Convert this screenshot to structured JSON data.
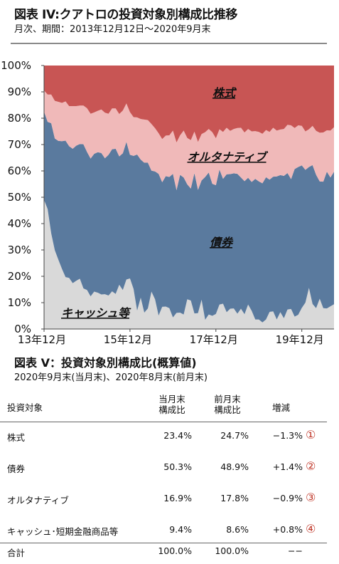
{
  "header": {
    "title": "図表 IV:クアトロの投資対象別構成比推移",
    "subtitle": "月次、期間：2013年12月12日～2020年9月末"
  },
  "chart_data": {
    "type": "area",
    "stacked": true,
    "title": "図表 IV:クアトロの投資対象別構成比推移",
    "subtitle": "月次、期間：2013年12月12日～2020年9月末",
    "y_tick_labels": [
      "0%",
      "10%",
      "20%",
      "30%",
      "40%",
      "50%",
      "60%",
      "70%",
      "80%",
      "90%",
      "100%"
    ],
    "x_tick_labels": [
      "13年12月",
      "15年12月",
      "17年12月",
      "19年12月"
    ],
    "ylim": [
      0,
      100
    ],
    "grid": false,
    "annotations": [
      "株式",
      "オルタナティブ",
      "債券",
      "キャッシュ等"
    ],
    "x": [
      "2013-12",
      "2014-01",
      "2014-02",
      "2014-03",
      "2014-04",
      "2014-05",
      "2014-06",
      "2014-07",
      "2014-08",
      "2014-09",
      "2014-10",
      "2014-11",
      "2014-12",
      "2015-01",
      "2015-02",
      "2015-03",
      "2015-04",
      "2015-05",
      "2015-06",
      "2015-07",
      "2015-08",
      "2015-09",
      "2015-10",
      "2015-11",
      "2015-12",
      "2016-01",
      "2016-02",
      "2016-03",
      "2016-04",
      "2016-05",
      "2016-06",
      "2016-07",
      "2016-08",
      "2016-09",
      "2016-10",
      "2016-11",
      "2016-12",
      "2017-01",
      "2017-02",
      "2017-03",
      "2017-04",
      "2017-05",
      "2017-06",
      "2017-07",
      "2017-08",
      "2017-09",
      "2017-10",
      "2017-11",
      "2017-12",
      "2018-01",
      "2018-02",
      "2018-03",
      "2018-04",
      "2018-05",
      "2018-06",
      "2018-07",
      "2018-08",
      "2018-09",
      "2018-10",
      "2018-11",
      "2018-12",
      "2019-01",
      "2019-02",
      "2019-03",
      "2019-04",
      "2019-05",
      "2019-06",
      "2019-07",
      "2019-08",
      "2019-09",
      "2019-10",
      "2019-11",
      "2019-12",
      "2020-01",
      "2020-02",
      "2020-03",
      "2020-04",
      "2020-05",
      "2020-06",
      "2020-07",
      "2020-08",
      "2020-09"
    ],
    "series": [
      {
        "name": "キャッシュ等",
        "color": "#d9d9d9",
        "values": [
          49.0,
          45.5,
          36.3,
          29.9,
          26.3,
          22.8,
          19.7,
          19.4,
          17.4,
          18.3,
          19.1,
          15.4,
          14.8,
          12.4,
          14.2,
          13.8,
          13.1,
          13.2,
          12.7,
          14.3,
          13.3,
          16.8,
          14.8,
          18.8,
          19.2,
          15.2,
          7.0,
          11.9,
          6.2,
          7.8,
          14.2,
          11.3,
          5.1,
          8.4,
          8.5,
          7.9,
          4.4,
          6.1,
          6.2,
          5.5,
          11.3,
          10.8,
          5.9,
          6.0,
          11.1,
          3.5,
          5.5,
          5.0,
          5.7,
          9.3,
          9.6,
          6.4,
          7.7,
          7.8,
          5.8,
          7.7,
          5.6,
          9.3,
          6.9,
          3.6,
          3.6,
          2.5,
          3.6,
          6.5,
          6.7,
          3.6,
          6.4,
          4.1,
          7.4,
          7.6,
          4.7,
          5.4,
          8.0,
          10.0,
          15.6,
          9.5,
          7.9,
          11.5,
          7.9,
          7.8,
          8.6,
          9.4
        ]
      },
      {
        "name": "債券",
        "color": "#5a7a9e",
        "values": [
          33.5,
          33.1,
          41.8,
          42.4,
          45.1,
          48.5,
          51.8,
          50.0,
          51.0,
          51.3,
          51.1,
          54.7,
          52.4,
          52.3,
          52.3,
          53.3,
          53.7,
          51.6,
          53.4,
          53.9,
          55.1,
          48.7,
          51.9,
          52.2,
          46.9,
          50.5,
          59.2,
          52.4,
          56.9,
          55.3,
          45.9,
          48.5,
          53.8,
          47.3,
          49.5,
          49.8,
          54.5,
          46.6,
          52.3,
          52.0,
          43.6,
          42.5,
          53.3,
          46.8,
          45.3,
          54.2,
          53.9,
          50.1,
          48.9,
          51.2,
          47.4,
          52.3,
          51.1,
          51.3,
          53.1,
          49.8,
          50.5,
          48.1,
          48.9,
          53.4,
          52.4,
          52.8,
          54.0,
          50.2,
          51.1,
          54.3,
          52.0,
          54.0,
          51.8,
          49.3,
          56.0,
          56.1,
          54.1,
          50.4,
          45.9,
          52.7,
          50.6,
          44.5,
          48.0,
          51.9,
          48.9,
          50.3
        ]
      },
      {
        "name": "オルタナティブ",
        "color": "#f0b9b9",
        "values": [
          8.0,
          10.4,
          10.9,
          14.3,
          14.8,
          14.5,
          14.9,
          15.2,
          16.2,
          15.0,
          14.6,
          14.7,
          16.6,
          17.0,
          15.7,
          15.7,
          16.5,
          17.3,
          15.6,
          15.5,
          15.3,
          16.1,
          16.2,
          14.6,
          16.2,
          14.7,
          14.1,
          15.4,
          16.4,
          16.2,
          17.7,
          16.4,
          15.4,
          16.4,
          15.4,
          15.8,
          16.4,
          18.1,
          15.0,
          17.8,
          17.6,
          18.4,
          15.7,
          18.2,
          17.6,
          17.0,
          16.5,
          19.6,
          17.8,
          15.3,
          17.8,
          17.7,
          16.4,
          16.8,
          17.4,
          18.9,
          18.5,
          18.5,
          19.2,
          18.1,
          18.8,
          18.8,
          17.9,
          18.1,
          18.6,
          17.4,
          17.3,
          17.8,
          18.3,
          20.4,
          15.6,
          15.8,
          15.0,
          14.6,
          14.3,
          14.9,
          16.7,
          18.5,
          18.7,
          15.7,
          17.8,
          16.9
        ]
      },
      {
        "name": "株式",
        "color": "#c85554",
        "values": [
          9.5,
          11.0,
          11.0,
          13.4,
          13.8,
          14.2,
          13.6,
          15.4,
          15.4,
          15.4,
          15.2,
          15.2,
          16.2,
          18.3,
          17.8,
          17.2,
          16.7,
          17.9,
          18.3,
          16.3,
          16.3,
          18.4,
          17.1,
          14.4,
          17.7,
          19.6,
          19.7,
          20.3,
          20.5,
          20.7,
          22.2,
          23.8,
          25.7,
          27.9,
          26.6,
          26.5,
          24.7,
          29.2,
          26.5,
          24.7,
          27.5,
          28.3,
          25.1,
          29.0,
          26.0,
          25.3,
          24.1,
          25.3,
          27.6,
          24.2,
          25.2,
          23.6,
          24.8,
          24.1,
          23.7,
          23.6,
          25.4,
          24.1,
          25.0,
          24.9,
          25.2,
          25.9,
          24.5,
          25.2,
          23.6,
          24.7,
          24.3,
          24.1,
          22.5,
          22.7,
          23.7,
          22.7,
          22.9,
          25.0,
          24.2,
          22.9,
          24.8,
          25.5,
          25.4,
          24.6,
          24.7,
          23.4
        ]
      }
    ]
  },
  "table": {
    "title": "図表 V：投資対象別構成比(概算値)",
    "subtitle": "2020年9月末(当月末)、2020年8月末(前月末)",
    "headers": {
      "name": "投資対象",
      "current_line1": "当月末",
      "current_line2": "構成比",
      "previous_line1": "前月末",
      "previous_line2": "構成比",
      "change": "増減"
    },
    "rows": [
      {
        "name": "株式",
        "current": "23.4%",
        "previous": "24.7%",
        "change": "−1.3%",
        "marker": "①"
      },
      {
        "name": "債券",
        "current": "50.3%",
        "previous": "48.9%",
        "change": "+1.4%",
        "marker": "②"
      },
      {
        "name": "オルタナティブ",
        "current": "16.9%",
        "previous": "17.8%",
        "change": "−0.9%",
        "marker": "③"
      },
      {
        "name": "キャッシュ･短期金融商品等",
        "current": "9.4%",
        "previous": "8.6%",
        "change": "+0.8%",
        "marker": "④"
      }
    ],
    "total": {
      "name": "合計",
      "current": "100.0%",
      "previous": "100.0%",
      "change": "−−"
    }
  }
}
